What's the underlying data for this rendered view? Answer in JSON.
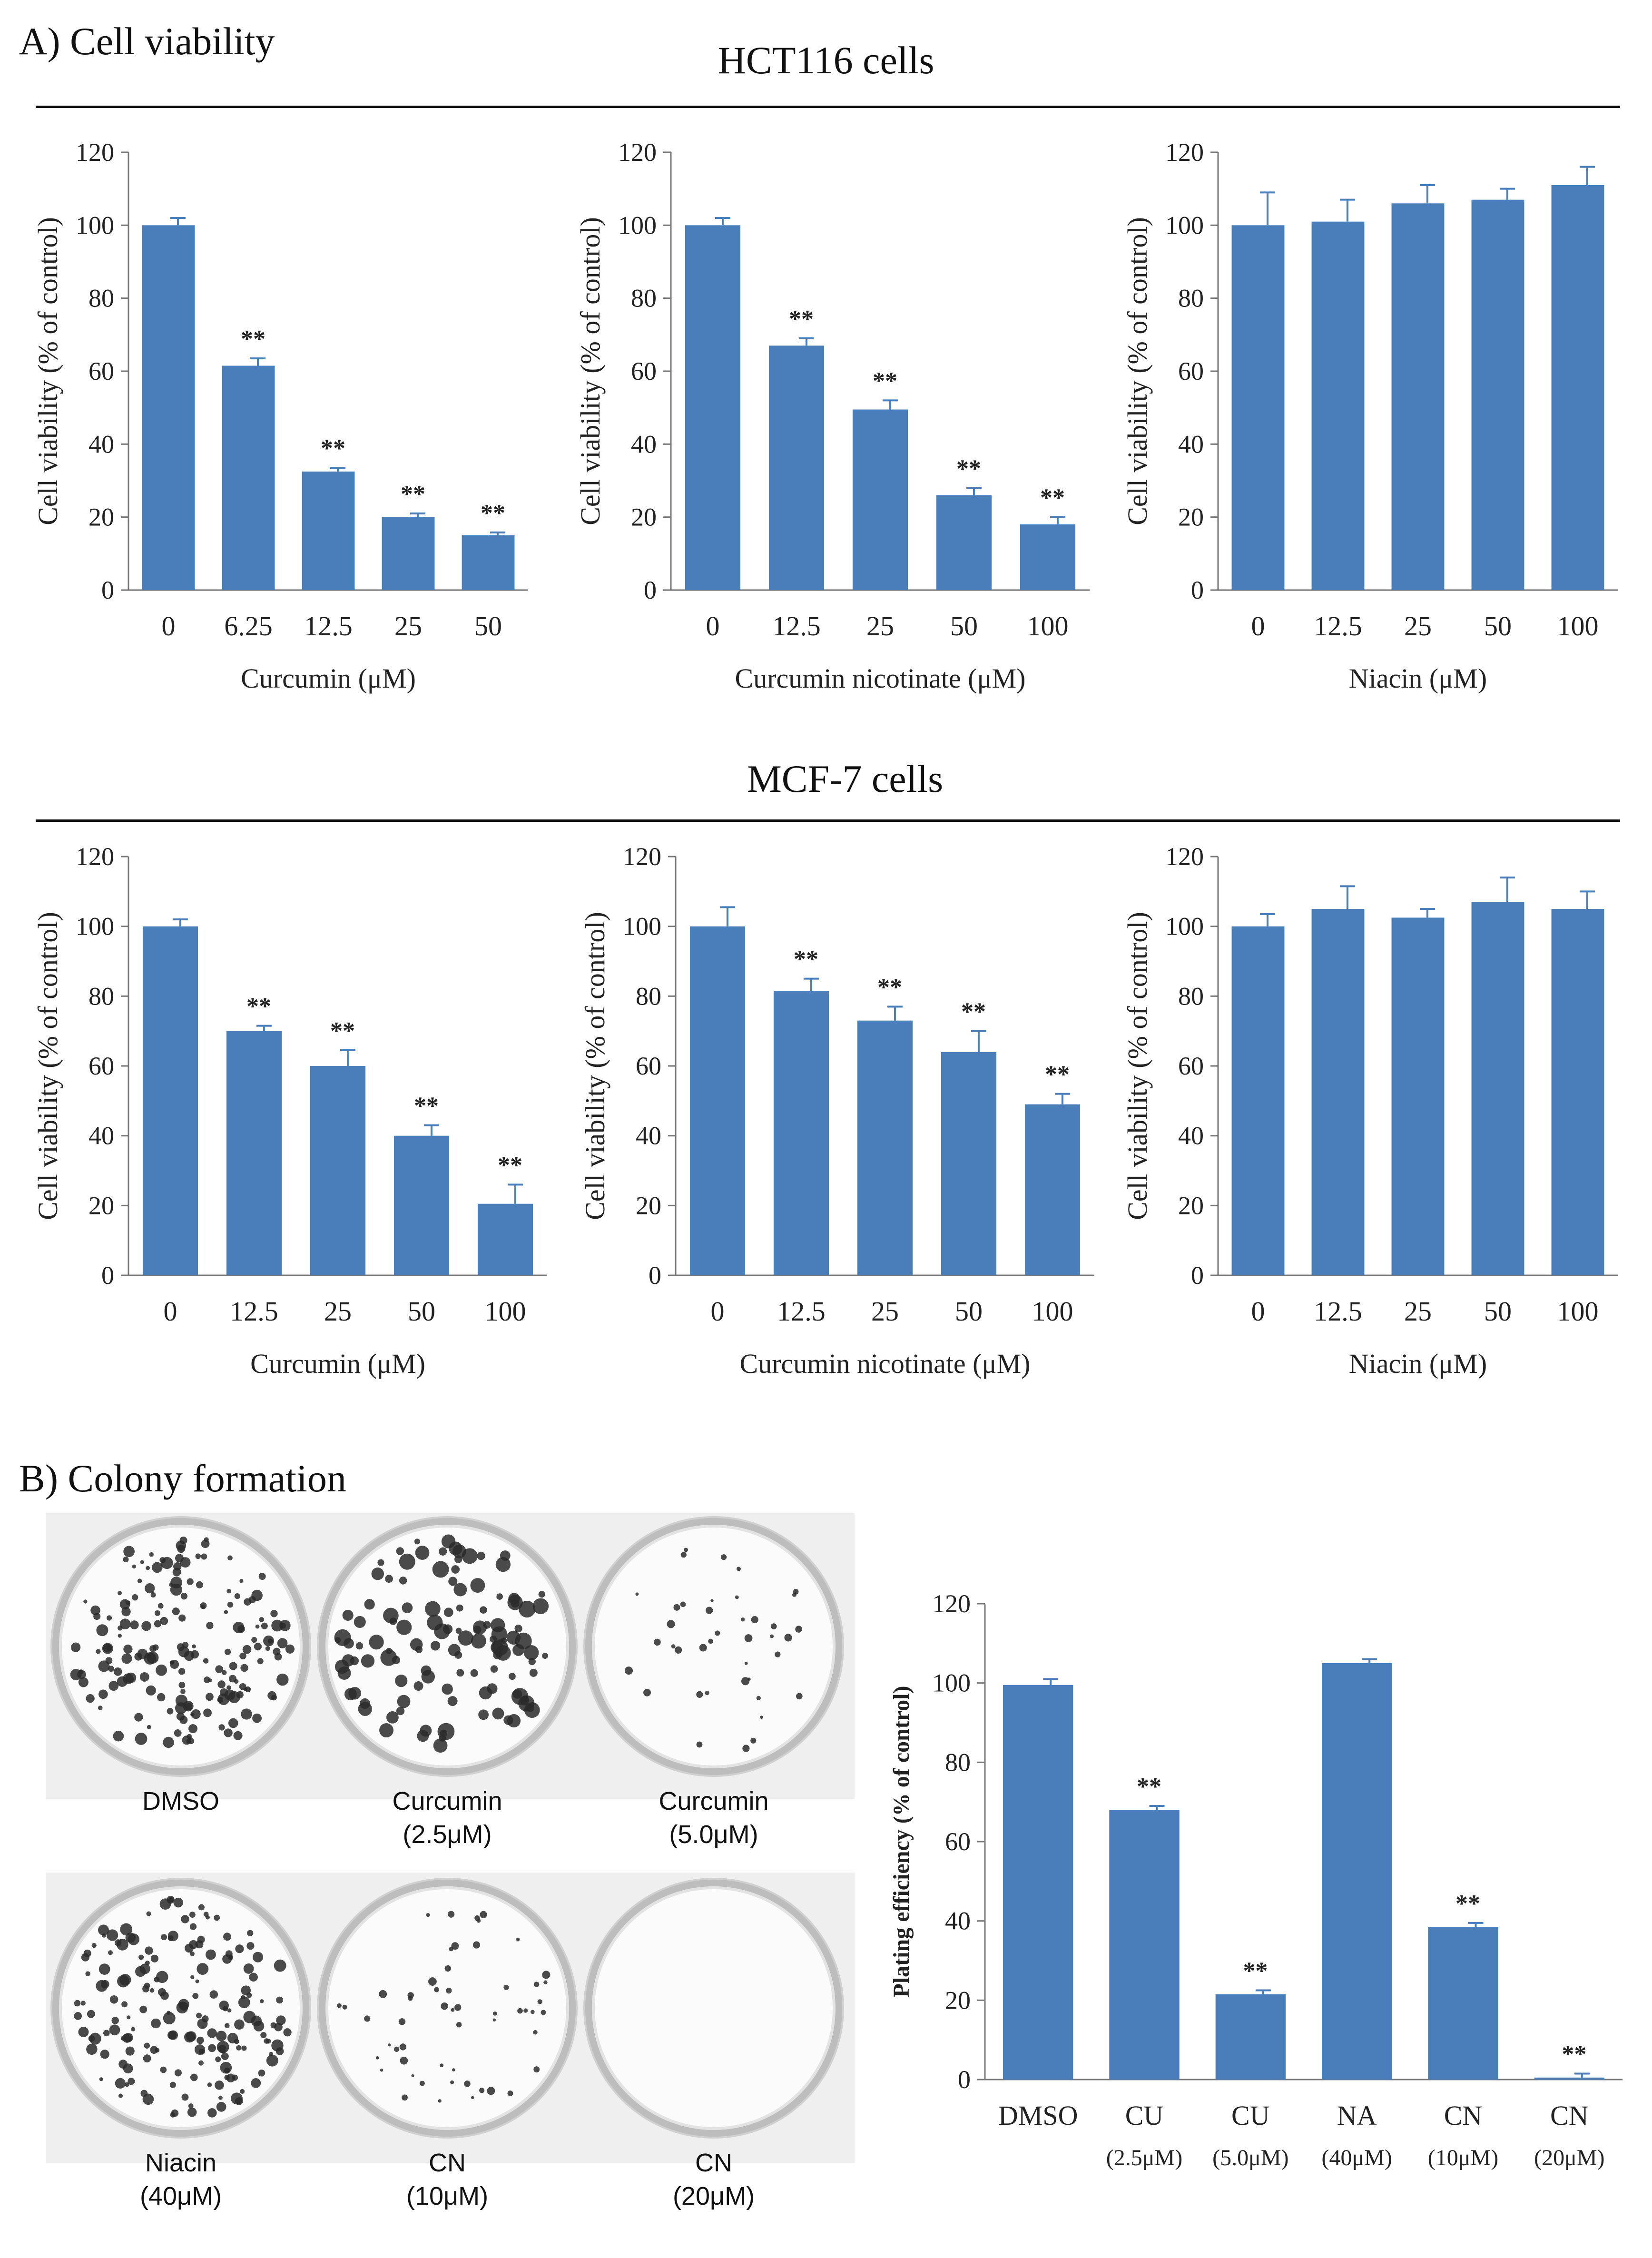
{
  "panel_a": {
    "label": "A) Cell viability"
  },
  "panel_b": {
    "label": "B) Colony formation"
  },
  "groups": [
    {
      "title": "HCT116 cells"
    },
    {
      "title": "MCF-7 cells"
    }
  ],
  "colors": {
    "bar": "#4a7ebb",
    "axis": "#777777",
    "text": "#222222"
  },
  "chart_data": [
    {
      "type": "bar",
      "group": "HCT116 cells",
      "xlabel": "Curcumin (μM)",
      "ylabel": "Cell viability (% of control)",
      "ylim": [
        0,
        120
      ],
      "yticks": [
        "0",
        "20",
        "40",
        "60",
        "80",
        "100",
        "120"
      ],
      "categories": [
        "0",
        "6.25",
        "12.5",
        "25",
        "50"
      ],
      "values": [
        100,
        61.5,
        32.5,
        20,
        15
      ],
      "errors": [
        2,
        2,
        1,
        1,
        0.8
      ],
      "annotations": [
        "",
        "**",
        "**",
        "**",
        "**"
      ]
    },
    {
      "type": "bar",
      "group": "HCT116 cells",
      "xlabel": "Curcumin  nicotinate (μM)",
      "ylabel": "Cell  viability (% of control)",
      "ylim": [
        0,
        120
      ],
      "yticks": [
        "0",
        "20",
        "40",
        "60",
        "80",
        "100",
        "120"
      ],
      "categories": [
        "0",
        "12.5",
        "25",
        "50",
        "100"
      ],
      "values": [
        100,
        67,
        49.5,
        26,
        18
      ],
      "errors": [
        2,
        2,
        2.5,
        2,
        2
      ],
      "annotations": [
        "",
        "**",
        "**",
        "**",
        "**"
      ]
    },
    {
      "type": "bar",
      "group": "HCT116 cells",
      "xlabel": "Niacin (μM)",
      "ylabel": "Cell viability (% of control)",
      "ylim": [
        0,
        120
      ],
      "yticks": [
        "0",
        "20",
        "40",
        "60",
        "80",
        "100",
        "120"
      ],
      "categories": [
        "0",
        "12.5",
        "25",
        "50",
        "100"
      ],
      "values": [
        100,
        101,
        106,
        107,
        111
      ],
      "errors": [
        9,
        6,
        5,
        3,
        5
      ],
      "annotations": [
        "",
        "",
        "",
        "",
        ""
      ]
    },
    {
      "type": "bar",
      "group": "MCF-7 cells",
      "xlabel": "Curcumin (μM)",
      "ylabel": "Cell viability (% of control)",
      "ylim": [
        0,
        120
      ],
      "yticks": [
        "0",
        "20",
        "40",
        "60",
        "80",
        "100",
        "120"
      ],
      "categories": [
        "0",
        "12.5",
        "25",
        "50",
        "100"
      ],
      "values": [
        100,
        70,
        60,
        40,
        20.5
      ],
      "errors": [
        2,
        1.5,
        4.5,
        3,
        5.5
      ],
      "annotations": [
        "",
        "**",
        "**",
        "**",
        "**"
      ]
    },
    {
      "type": "bar",
      "group": "MCF-7 cells",
      "xlabel": "Curcumin nicotinate (μM)",
      "ylabel": "Cell viability (% of control)",
      "ylim": [
        0,
        120
      ],
      "yticks": [
        "0",
        "20",
        "40",
        "60",
        "80",
        "100",
        "120"
      ],
      "categories": [
        "0",
        "12.5",
        "25",
        "50",
        "100"
      ],
      "values": [
        100,
        81.5,
        73,
        64,
        49
      ],
      "errors": [
        5.5,
        3.5,
        4,
        6,
        3
      ],
      "annotations": [
        "",
        "**",
        "**",
        "**",
        "**"
      ]
    },
    {
      "type": "bar",
      "group": "MCF-7 cells",
      "xlabel": "Niacin (μM)",
      "ylabel": "Cell viability (% of control)",
      "ylim": [
        0,
        120
      ],
      "yticks": [
        "0",
        "20",
        "40",
        "60",
        "80",
        "100",
        "120"
      ],
      "categories": [
        "0",
        "12.5",
        "25",
        "50",
        "100"
      ],
      "values": [
        100,
        105,
        102.5,
        107,
        105
      ],
      "errors": [
        3.5,
        6.5,
        2.5,
        7,
        5
      ],
      "annotations": [
        "",
        "",
        "",
        "",
        ""
      ]
    },
    {
      "type": "bar",
      "group": "Colony formation",
      "xlabel": "",
      "ylabel": "Plating efficiency  (% of control)",
      "ylim": [
        0,
        120
      ],
      "yticks": [
        "0",
        "20",
        "40",
        "60",
        "80",
        "100",
        "120"
      ],
      "categories": [
        "DMSO",
        "CU",
        "CU",
        "NA",
        "CN",
        "CN"
      ],
      "subcategories": [
        "",
        "(2.5μM)",
        "(5.0μM)",
        "(40μM)",
        "(10μM)",
        "(20μM)"
      ],
      "values": [
        99.5,
        68,
        21.5,
        105,
        38.5,
        0.5
      ],
      "errors": [
        1.5,
        1,
        1,
        1,
        1,
        1
      ],
      "annotations": [
        "",
        "**",
        "**",
        "",
        "**",
        "**"
      ]
    }
  ],
  "dishes": [
    {
      "label": "DMSO",
      "density": "high"
    },
    {
      "label": "Curcumin\n(2.5μM)",
      "density": "medium"
    },
    {
      "label": "Curcumin\n(5.0μM)",
      "density": "low"
    },
    {
      "label": "Niacin\n(40μM)",
      "density": "high"
    },
    {
      "label": "CN\n(10μM)",
      "density": "sparse"
    },
    {
      "label": "CN\n(20μM)",
      "density": "none"
    }
  ]
}
